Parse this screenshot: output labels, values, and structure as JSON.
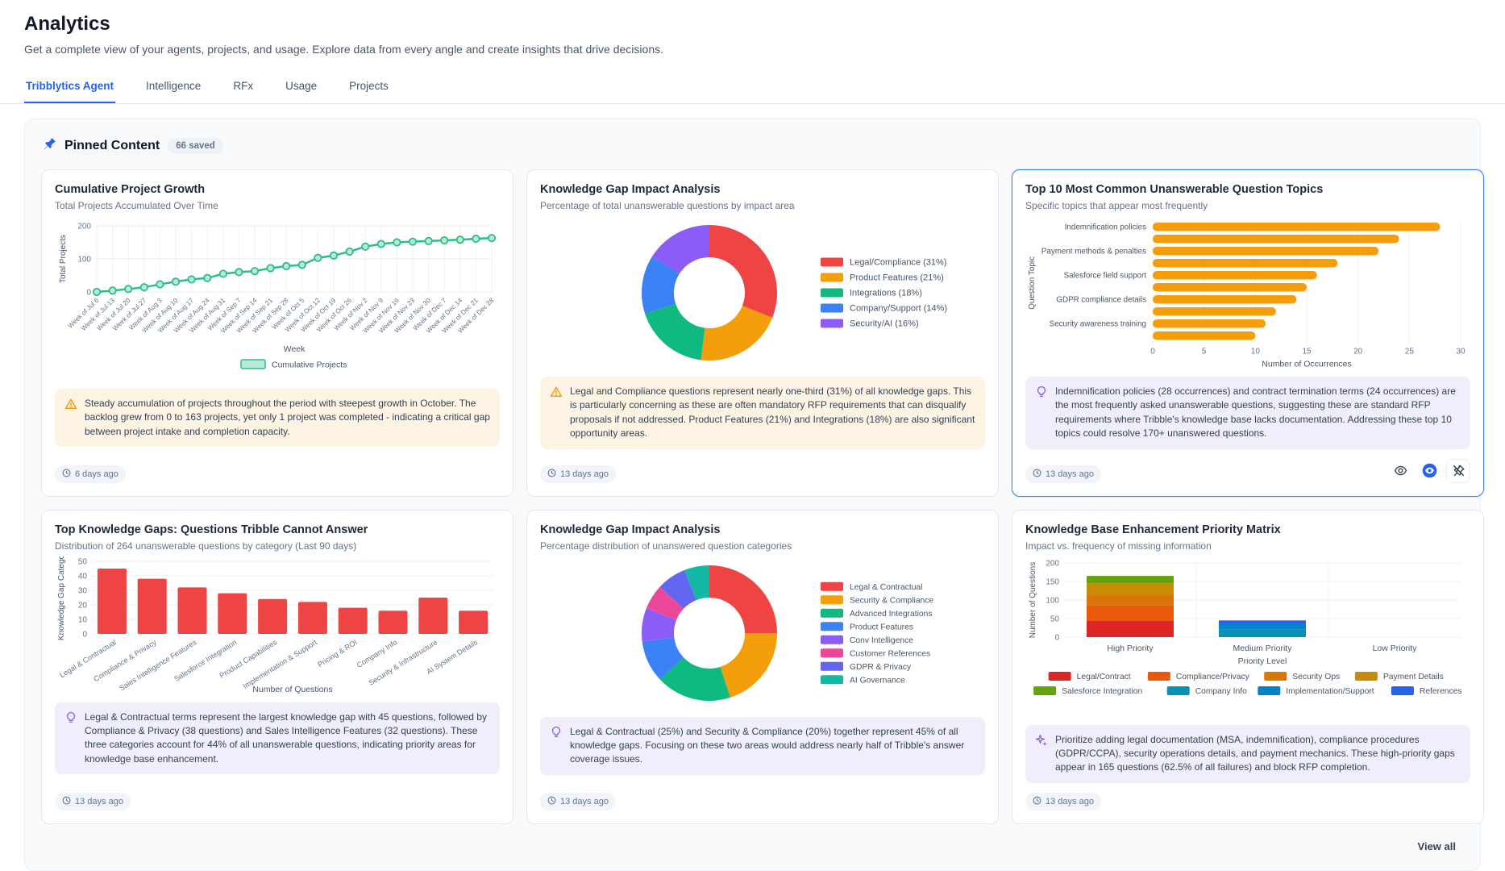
{
  "page": {
    "title": "Analytics",
    "subtitle": "Get a complete view of your agents, projects, and usage. Explore data from every angle and create insights that drive decisions."
  },
  "tabs": [
    {
      "label": "Tribblytics Agent",
      "active": true
    },
    {
      "label": "Intelligence",
      "active": false
    },
    {
      "label": "RFx",
      "active": false
    },
    {
      "label": "Usage",
      "active": false
    },
    {
      "label": "Projects",
      "active": false
    }
  ],
  "pinned": {
    "title": "Pinned Content",
    "badge": "66 saved",
    "view_all_label": "View all",
    "pin_icon_color": "#2563eb"
  },
  "colors": {
    "accent_blue": "#2563eb",
    "selected_card_border": "#3b82f6",
    "warning_icon": "#f59e0b",
    "insight_icon_purple": "#8b5cf6",
    "warning_bg": "#fdf4e3",
    "info_bg": "#f1eefb"
  },
  "cards": [
    {
      "title": "Cumulative Project Growth",
      "subtitle": "Total Projects Accumulated Over Time",
      "insight_icon": "warning-triangle",
      "insight_tone": "warning",
      "insight": "Steady accumulation of projects throughout the period with steepest growth in October. The backlog grew from 0 to 163 projects, yet only 1 project was completed - indicating a critical gap between project intake and completion capacity.",
      "timestamp": "6 days ago",
      "selected": false
    },
    {
      "title": "Knowledge Gap Impact Analysis",
      "subtitle": "Percentage of total unanswerable questions by impact area",
      "insight_icon": "warning-triangle",
      "insight_tone": "warning",
      "insight": "Legal and Compliance questions represent nearly one-third (31%) of all knowledge gaps. This is particularly concerning as these are often mandatory RFP requirements that can disqualify proposals if not addressed. Product Features (21%) and Integrations (18%) are also significant opportunity areas.",
      "timestamp": "13 days ago",
      "selected": false
    },
    {
      "title": "Top 10 Most Common Unanswerable Question Topics",
      "subtitle": "Specific topics that appear most frequently",
      "insight_icon": "lightbulb",
      "insight_tone": "info",
      "insight": "Indemnification policies (28 occurrences) and contract termination terms (24 occurrences) are the most frequently asked unanswerable questions, suggesting these are standard RFP requirements where Tribble's knowledge base lacks documentation. Addressing these top 10 topics could resolve 170+ unanswered questions.",
      "timestamp": "13 days ago",
      "selected": true,
      "actions": [
        "eye",
        "eye-filled",
        "pin-off"
      ]
    },
    {
      "title": "Top Knowledge Gaps: Questions Tribble Cannot Answer",
      "subtitle": "Distribution of 264 unanswerable questions by category (Last 90 days)",
      "insight_icon": "lightbulb",
      "insight_tone": "info",
      "insight": "Legal & Contractual terms represent the largest knowledge gap with 45 questions, followed by Compliance & Privacy (38 questions) and Sales Intelligence Features (32 questions). These three categories account for 44% of all unanswerable questions, indicating priority areas for knowledge base enhancement.",
      "timestamp": "13 days ago",
      "selected": false
    },
    {
      "title": "Knowledge Gap Impact Analysis",
      "subtitle": "Percentage distribution of unanswered question categories",
      "insight_icon": "lightbulb",
      "insight_tone": "info",
      "insight": "Legal & Contractual (25%) and Security & Compliance (20%) together represent 45% of all knowledge gaps. Focusing on these two areas would address nearly half of Tribble's answer coverage issues.",
      "timestamp": "13 days ago",
      "selected": false
    },
    {
      "title": "Knowledge Base Enhancement Priority Matrix",
      "subtitle": "Impact vs. frequency of missing information",
      "insight_icon": "sparkles",
      "insight_tone": "info",
      "insight": "Prioritize adding legal documentation (MSA, indemnification), compliance procedures (GDPR/CCPA), security operations details, and payment mechanics. These high-priority gaps appear in 165 questions (62.5% of all failures) and block RFP completion.",
      "timestamp": "13 days ago",
      "selected": false
    }
  ],
  "chart_data": [
    {
      "type": "line",
      "x": [
        "Week of Jul 6",
        "Week of Jul 13",
        "Week of Jul 20",
        "Week of Jul 27",
        "Week of Aug 3",
        "Week of Aug 10",
        "Week of Aug 17",
        "Week of Aug 24",
        "Week of Aug 31",
        "Week of Sep 7",
        "Week of Sep 14",
        "Week of Sep 21",
        "Week of Sep 28",
        "Week of Oct 5",
        "Week of Oct 12",
        "Week of Oct 19",
        "Week of Oct 26",
        "Week of Nov 2",
        "Week of Nov 9",
        "Week of Nov 16",
        "Week of Nov 23",
        "Week of Nov 30",
        "Week of Dec 7",
        "Week of Dec 14",
        "Week of Dec 21",
        "Week of Dec 28"
      ],
      "series": [
        {
          "name": "Cumulative Projects",
          "values": [
            0,
            4,
            9,
            14,
            23,
            31,
            38,
            42,
            55,
            60,
            63,
            72,
            78,
            82,
            103,
            110,
            122,
            137,
            145,
            150,
            152,
            154,
            156,
            158,
            161,
            163
          ]
        }
      ],
      "xlabel": "Week",
      "ylabel": "Total Projects",
      "ylim": [
        0,
        200
      ],
      "yticks": [
        0,
        100,
        200
      ],
      "color": "#2ebd85",
      "grid": true,
      "legend_position": "bottom"
    },
    {
      "type": "pie",
      "labels": [
        "Legal/Compliance (31%)",
        "Product Features (21%)",
        "Integrations (18%)",
        "Company/Support (14%)",
        "Security/AI (16%)"
      ],
      "values": [
        31,
        21,
        18,
        14,
        16
      ],
      "colors": [
        "#ef4444",
        "#f59e0b",
        "#10b981",
        "#3b82f6",
        "#8b5cf6"
      ],
      "donut": true,
      "legend_position": "right"
    },
    {
      "type": "bar",
      "orientation": "horizontal",
      "categories_visible": [
        "Indemnification policies",
        "Payment methods & penalties",
        "Salesforce field support",
        "GDPR compliance details",
        "Security awareness training"
      ],
      "label_every": 2,
      "values": [
        28,
        24,
        22,
        18,
        16,
        15,
        14,
        12,
        11,
        10
      ],
      "xlabel": "Number of Occurrences",
      "ylabel": "Question Topic",
      "xlim": [
        0,
        30
      ],
      "xticks": [
        0,
        5,
        10,
        15,
        20,
        25,
        30
      ],
      "color": "#f59e0b",
      "grid": true
    },
    {
      "type": "bar",
      "orientation": "vertical",
      "categories": [
        "Legal & Contractual",
        "Compliance & Privacy",
        "Sales Intelligence Features",
        "Salesforce Integration",
        "Product Capabilities",
        "Implementation & Support",
        "Pricing & ROI",
        "Company Info",
        "Security & Infrastructure",
        "AI System Details"
      ],
      "values": [
        45,
        38,
        32,
        28,
        24,
        22,
        18,
        16,
        25,
        16
      ],
      "xlabel": "Number of Questions",
      "ylabel": "Knowledge Gap Catego",
      "ylim": [
        0,
        50
      ],
      "yticks": [
        0,
        10,
        20,
        30,
        40,
        50
      ],
      "color": "#ef4444",
      "grid": true
    },
    {
      "type": "pie",
      "labels": [
        "Legal & Contractual",
        "Security & Compliance",
        "Advanced Integrations",
        "Product Features",
        "Conv Intelligence",
        "Customer References",
        "GDPR & Privacy",
        "AI Governance"
      ],
      "values": [
        25,
        20,
        18,
        10,
        8,
        6,
        7,
        6
      ],
      "colors": [
        "#ef4444",
        "#f59e0b",
        "#10b981",
        "#3b82f6",
        "#8b5cf6",
        "#ec4899",
        "#6366f1",
        "#14b8a6"
      ],
      "donut": true,
      "legend_position": "right",
      "note": "Only Legal & Contractual 25% and Security & Compliance 20% stated on screen; remaining slice values estimated from arc sizes"
    },
    {
      "type": "bar",
      "stacked": true,
      "categories": [
        "High Priority",
        "Medium Priority",
        "Low Priority"
      ],
      "series": [
        {
          "name": "Legal/Contract",
          "color": "#dc2626",
          "values": [
            45,
            0,
            0
          ]
        },
        {
          "name": "Compliance/Privacy",
          "color": "#ea580c",
          "values": [
            40,
            0,
            0
          ]
        },
        {
          "name": "Security Ops",
          "color": "#d97706",
          "values": [
            30,
            0,
            0
          ]
        },
        {
          "name": "Payment Details",
          "color": "#ca8a04",
          "values": [
            30,
            0,
            0
          ]
        },
        {
          "name": "Salesforce Integration",
          "color": "#65a30d",
          "values": [
            20,
            0,
            0
          ]
        },
        {
          "name": "Company Info",
          "color": "#0891b2",
          "values": [
            0,
            20,
            0
          ]
        },
        {
          "name": "Implementation/Support",
          "color": "#0284c7",
          "values": [
            0,
            15,
            0
          ]
        },
        {
          "name": "References",
          "color": "#2563eb",
          "values": [
            0,
            10,
            0
          ]
        }
      ],
      "xlabel": "Priority Level",
      "ylabel": "Number of Questions",
      "ylim": [
        0,
        200
      ],
      "yticks": [
        0,
        50,
        100,
        150,
        200
      ],
      "grid": true,
      "legend_position": "bottom"
    }
  ]
}
